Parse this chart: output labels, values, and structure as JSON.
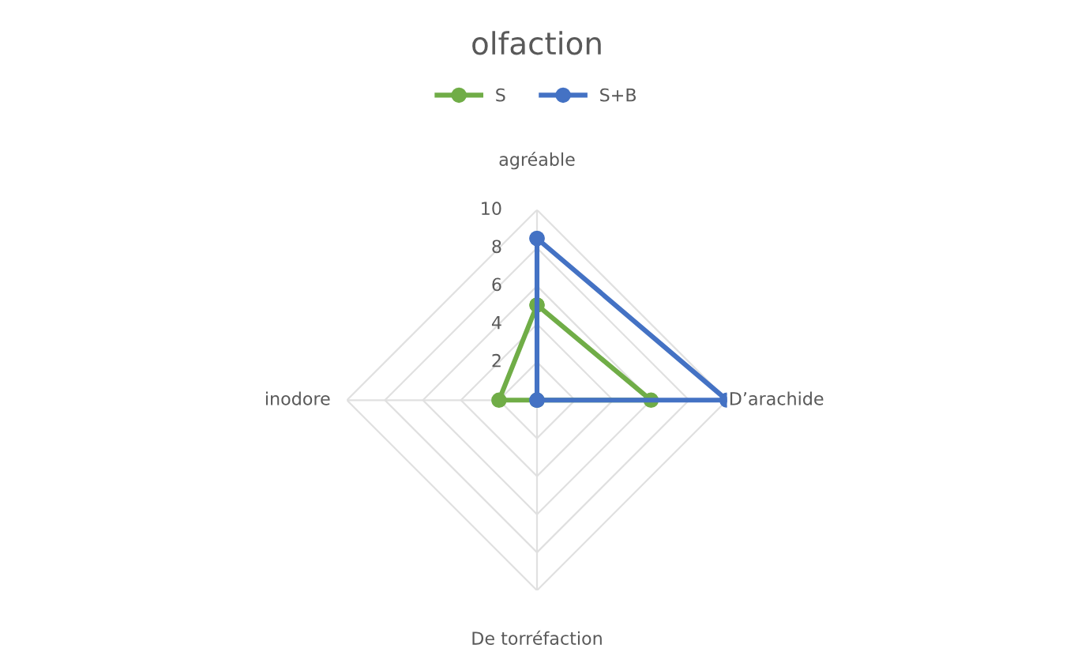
{
  "chart_data": {
    "type": "radar",
    "title": "olfaction",
    "categories": [
      "agréable",
      "D’arachide",
      "De torréfaction",
      "inodore"
    ],
    "series": [
      {
        "name": "S",
        "color": "#70ad47",
        "values": [
          5,
          6,
          0,
          2
        ]
      },
      {
        "name": "S+B",
        "color": "#4472c4",
        "values": [
          8.5,
          10,
          0,
          0
        ]
      }
    ],
    "ylim": [
      0,
      10
    ],
    "yticks": [
      2,
      4,
      6,
      8,
      10
    ],
    "grid": true,
    "legend": "top",
    "marker": "circle"
  }
}
